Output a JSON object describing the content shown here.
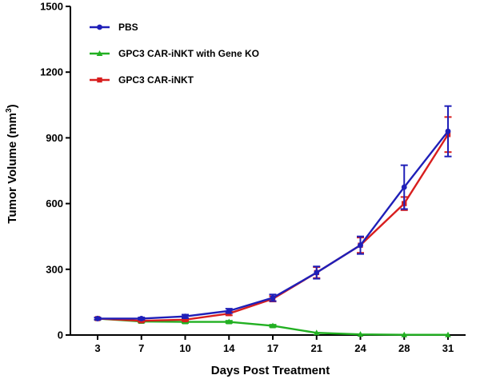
{
  "chart_data": {
    "type": "line",
    "title": "",
    "xlabel": "Days Post Treatment",
    "ylabel_main": "Tumor Volume (mm",
    "ylabel_sup": "3",
    "ylabel_close": ")",
    "x": [
      "3",
      "7",
      "10",
      "14",
      "17",
      "21",
      "24",
      "28",
      "31"
    ],
    "ylim": [
      0,
      1500
    ],
    "yticks": [
      "0",
      "300",
      "600",
      "900",
      "1200",
      "1500"
    ],
    "legend_position": "top-left",
    "series": [
      {
        "name": "PBS",
        "color": "#1f1fb8",
        "marker": "circle",
        "values": [
          75,
          75,
          85,
          110,
          170,
          285,
          410,
          675,
          930
        ],
        "errors": [
          5,
          5,
          8,
          10,
          15,
          28,
          40,
          100,
          115
        ]
      },
      {
        "name": "GPC3 CAR-iNKT with Gene KO",
        "color": "#22b022",
        "marker": "triangle",
        "values": [
          75,
          62,
          60,
          60,
          42,
          10,
          3,
          1,
          1
        ],
        "errors": [
          5,
          5,
          5,
          5,
          5,
          3,
          1,
          1,
          1
        ]
      },
      {
        "name": "GPC3 CAR-iNKT",
        "color": "#d81e1e",
        "marker": "square",
        "values": [
          75,
          65,
          70,
          98,
          165,
          285,
          410,
          600,
          915
        ],
        "errors": [
          5,
          5,
          6,
          8,
          12,
          25,
          35,
          30,
          80
        ]
      }
    ]
  }
}
